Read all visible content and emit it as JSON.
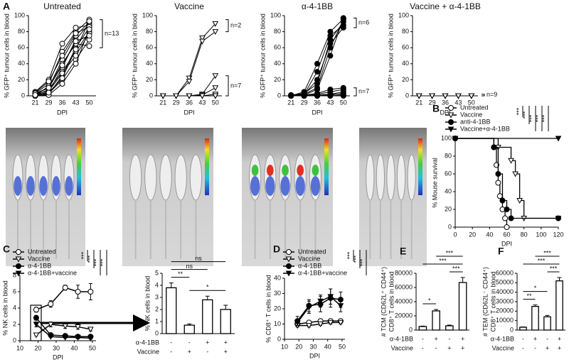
{
  "chart_data": [
    {
      "type": "line",
      "panel": "A",
      "title": "Untreated",
      "x_label": "DPI",
      "y_label": "% GFP⁺ tumour cells in blood",
      "color": "#000000",
      "marker": "circle-open",
      "categories": [
        "21",
        "29",
        "36",
        "43",
        "50"
      ],
      "ylim": [
        0,
        100
      ],
      "yticks": [
        0,
        20,
        40,
        60,
        80,
        100
      ],
      "series": [
        {
          "values": [
            0,
            2,
            25,
            60,
            85
          ]
        },
        {
          "values": [
            0,
            5,
            35,
            70,
            90
          ]
        },
        {
          "values": [
            2,
            10,
            45,
            75,
            92
          ]
        },
        {
          "values": [
            3,
            15,
            55,
            80,
            95
          ]
        },
        {
          "values": [
            5,
            20,
            65,
            85,
            88
          ]
        },
        {
          "values": [
            0,
            8,
            30,
            55,
            80
          ]
        },
        {
          "values": [
            1,
            3,
            20,
            45,
            70
          ]
        },
        {
          "values": [
            0,
            12,
            40,
            65,
            62
          ]
        },
        {
          "values": [
            4,
            18,
            50,
            78,
            86
          ]
        },
        {
          "values": [
            2,
            6,
            28,
            50,
            78
          ]
        },
        {
          "values": [
            0,
            1,
            15,
            40,
            83
          ]
        },
        {
          "values": [
            3,
            10,
            38,
            68,
            75
          ]
        },
        {
          "values": [
            1,
            4,
            22,
            58,
            93
          ]
        }
      ],
      "annotations": [
        "n=13"
      ]
    },
    {
      "type": "line",
      "title": "Vaccine",
      "x_label": "DPI",
      "y_label": "% GFP⁺ tumour cells in blood",
      "color": "#000000",
      "marker": "triangle-open",
      "categories": [
        "21",
        "29",
        "36",
        "43",
        "50"
      ],
      "ylim": [
        0,
        100
      ],
      "yticks": [
        0,
        20,
        40,
        60,
        80,
        100
      ],
      "series": [
        {
          "values": [
            0,
            0,
            22,
            72,
            90
          ]
        },
        {
          "values": [
            0,
            0,
            18,
            68,
            80
          ]
        },
        {
          "values": [
            0,
            0,
            0,
            2,
            25
          ]
        },
        {
          "values": [
            0,
            0,
            0,
            1,
            10
          ]
        },
        {
          "values": [
            0,
            0,
            0,
            0,
            2
          ]
        },
        {
          "values": [
            0,
            0,
            0,
            0,
            0
          ]
        },
        {
          "values": [
            0,
            0,
            0,
            0,
            0
          ]
        },
        {
          "values": [
            0,
            0,
            0,
            0,
            0
          ]
        },
        {
          "values": [
            0,
            0,
            0,
            0,
            0
          ]
        }
      ],
      "annotations": [
        "n=2",
        "n=7"
      ]
    },
    {
      "type": "line",
      "title": "α-4-1BB",
      "x_label": "DPI",
      "y_label": "% GFP⁺ tumour cells in blood",
      "color": "#000000",
      "marker": "circle",
      "categories": [
        "21",
        "29",
        "36",
        "43",
        "50"
      ],
      "ylim": [
        0,
        100
      ],
      "yticks": [
        0,
        20,
        40,
        60,
        80,
        100
      ],
      "series": [
        {
          "values": [
            0,
            2,
            10,
            60,
            95
          ]
        },
        {
          "values": [
            0,
            1,
            8,
            50,
            97
          ]
        },
        {
          "values": [
            1,
            3,
            15,
            70,
            92
          ]
        },
        {
          "values": [
            0,
            2,
            30,
            75,
            88
          ]
        },
        {
          "values": [
            0,
            5,
            40,
            80,
            96
          ]
        },
        {
          "values": [
            1,
            2,
            20,
            65,
            85
          ]
        },
        {
          "values": [
            0,
            0,
            2,
            5,
            8
          ]
        },
        {
          "values": [
            0,
            1,
            3,
            8,
            10
          ]
        },
        {
          "values": [
            0,
            0,
            1,
            2,
            5
          ]
        },
        {
          "values": [
            0,
            0,
            0,
            1,
            3
          ]
        },
        {
          "values": [
            0,
            1,
            1,
            2,
            2
          ]
        },
        {
          "values": [
            0,
            0,
            0,
            0,
            1
          ]
        },
        {
          "values": [
            0,
            0,
            0,
            0,
            0
          ]
        }
      ],
      "annotations": [
        "n=6",
        "n=7"
      ]
    },
    {
      "type": "line",
      "title": "Vaccine + α-4-1BB",
      "x_label": "DPI",
      "y_label": "% GFP⁺ tumour cells in blood",
      "color": "#000000",
      "marker": "triangle-open",
      "categories": [
        "21",
        "29",
        "36",
        "43",
        "50"
      ],
      "ylim": [
        0,
        100
      ],
      "yticks": [
        0,
        20,
        40,
        60,
        80,
        100
      ],
      "series": [
        {
          "values": [
            0,
            0,
            0,
            0,
            0
          ]
        },
        {
          "values": [
            0,
            0,
            0,
            0,
            0
          ]
        },
        {
          "values": [
            0,
            0,
            0,
            0,
            0
          ]
        },
        {
          "values": [
            0,
            0,
            0,
            0,
            0
          ]
        },
        {
          "values": [
            0,
            0,
            0,
            0,
            0
          ]
        },
        {
          "values": [
            0,
            0,
            0,
            0,
            0
          ]
        },
        {
          "values": [
            0,
            0,
            0,
            0,
            0
          ]
        },
        {
          "values": [
            0,
            0,
            0,
            0,
            0
          ]
        },
        {
          "values": [
            0,
            0,
            0,
            0,
            0
          ]
        }
      ],
      "annotations": [
        "n=9"
      ]
    },
    {
      "type": "step",
      "panel": "B",
      "x_label": "DPI",
      "y_label": "% Mouse survival",
      "color": "#000000",
      "xlim": [
        0,
        120
      ],
      "xticks": [
        0,
        20,
        40,
        60,
        80,
        100,
        120
      ],
      "ylim": [
        0,
        100
      ],
      "yticks": [
        0,
        20,
        40,
        60,
        80,
        100
      ],
      "series": [
        {
          "name": "Untreated",
          "marker": "circle-open",
          "x": [
            0,
            45,
            48,
            50,
            52,
            55,
            58,
            60
          ],
          "values": [
            100,
            90,
            70,
            50,
            35,
            20,
            10,
            0
          ]
        },
        {
          "name": "Vaccine",
          "marker": "triangle-open",
          "x": [
            0,
            50,
            65,
            70,
            75,
            80,
            120
          ],
          "values": [
            100,
            90,
            75,
            60,
            30,
            10,
            10
          ]
        },
        {
          "name": "anti-4-1BB",
          "marker": "circle",
          "x": [
            0,
            45,
            50,
            55,
            60,
            65,
            120
          ],
          "values": [
            100,
            90,
            60,
            30,
            20,
            10,
            10
          ]
        },
        {
          "name": "Vaccine+α-4-1BB",
          "marker": "triangle",
          "x": [
            0,
            120
          ],
          "values": [
            100,
            100
          ]
        }
      ],
      "annotations": [
        "***",
        "***",
        "***",
        "***",
        "***"
      ]
    },
    {
      "type": "line",
      "panel": "C",
      "x_label": "DPI",
      "y_label": "% NK cells in blood",
      "color": "#000000",
      "x": [
        19,
        27,
        35,
        42,
        49
      ],
      "xlim": [
        10,
        52
      ],
      "xticks": [
        10,
        20,
        30,
        40,
        50
      ],
      "ylim": [
        0,
        8
      ],
      "yticks": [
        0,
        2,
        4,
        6,
        8
      ],
      "series": [
        {
          "name": "Untreated",
          "marker": "circle-open",
          "values": [
            3.8,
            4.5,
            6.5,
            6.0,
            6.0
          ],
          "errors": [
            0.3,
            0.4,
            0.3,
            0.8,
            1.0
          ]
        },
        {
          "name": "Vaccine",
          "marker": "triangle-open",
          "values": [
            0.7,
            2.0,
            1.8,
            1.7,
            1.4
          ],
          "errors": [
            0.1,
            0.3,
            0.3,
            0.3,
            0.2
          ]
        },
        {
          "name": "α-4-1BB",
          "marker": "circle",
          "values": [
            2.8,
            0.7,
            0.6,
            0.5,
            0.5
          ],
          "errors": [
            0.3,
            0.1,
            0.1,
            0.1,
            0.1
          ]
        },
        {
          "name": "α-4-1BB+vaccine",
          "marker": "triangle",
          "values": [
            2.0,
            0.5,
            0.4,
            0.4,
            0.3
          ],
          "errors": [
            0.3,
            0.1,
            0.1,
            0.1,
            0.1
          ]
        }
      ],
      "annotations": [
        "***",
        "***",
        "***",
        "***"
      ]
    },
    {
      "type": "bar",
      "y_label": "% NK cells in blood",
      "color": "#000000",
      "values": [
        3.8,
        0.7,
        2.8,
        2.0
      ],
      "errors": [
        0.4,
        0.1,
        0.3,
        0.35
      ],
      "ylim": [
        0,
        5
      ],
      "yticks": [
        0,
        1,
        2,
        3,
        4,
        5
      ],
      "rows": [
        {
          "label": "α-4-1BB",
          "signs": [
            "-",
            "-",
            "+",
            "+"
          ]
        },
        {
          "label": "Vaccine",
          "signs": [
            "-",
            "+",
            "-",
            "+"
          ]
        }
      ],
      "annotations": [
        "ns",
        "ns",
        "**",
        "*"
      ]
    },
    {
      "type": "line",
      "panel": "D",
      "x_label": "DPI",
      "y_label": "% CD8⁺ T cells in blood",
      "color": "#000000",
      "x": [
        19,
        27,
        35,
        42,
        49
      ],
      "xlim": [
        10,
        52
      ],
      "xticks": [
        10,
        20,
        30,
        40,
        50
      ],
      "ylim": [
        0,
        40
      ],
      "yticks": [
        0,
        10,
        20,
        30,
        40
      ],
      "series": [
        {
          "name": "Untreated",
          "marker": "circle-open",
          "values": [
            10,
            11,
            12,
            12,
            12
          ],
          "errors": [
            1,
            1,
            1,
            1,
            1
          ]
        },
        {
          "name": "Vaccine",
          "marker": "triangle-open",
          "values": [
            9,
            9,
            10,
            11,
            11
          ],
          "errors": [
            1,
            1,
            1,
            1,
            1
          ]
        },
        {
          "name": "α-4-1BB",
          "marker": "circle",
          "values": [
            12,
            22,
            23,
            27,
            26
          ],
          "errors": [
            3,
            4,
            5,
            6,
            5
          ]
        },
        {
          "name": "α-4-1BB+vaccine",
          "marker": "triangle",
          "values": [
            11,
            21,
            25,
            28,
            22
          ],
          "errors": [
            2,
            4,
            4,
            5,
            4
          ]
        }
      ],
      "annotations": [
        "***",
        "***",
        "***"
      ]
    },
    {
      "type": "bar",
      "panel": "E",
      "y_label": [
        "# TCM (CD62L⁺ CD44⁺)",
        "CD8⁺ T cells in blood"
      ],
      "color": "#000000",
      "values": [
        5000,
        27000,
        6000,
        67000
      ],
      "errors": [
        600,
        2000,
        1000,
        7000
      ],
      "ylim": [
        0,
        80000
      ],
      "yticks": [
        0,
        20000,
        40000,
        60000,
        80000
      ],
      "rows": [
        {
          "label": "α-4-1BB",
          "signs": [
            "-",
            "+",
            "-",
            "+"
          ]
        },
        {
          "label": "Vaccine",
          "signs": [
            "-",
            "-",
            "+",
            "+"
          ]
        }
      ],
      "annotations": [
        "***",
        "***",
        "***",
        "*"
      ]
    },
    {
      "type": "bar",
      "panel": "F",
      "y_label": [
        "# TEM (CD62L⁻ CD44⁺)",
        "CD8⁺ T cells in blood"
      ],
      "color": "#000000",
      "values": [
        3000,
        25000,
        14000,
        52000
      ],
      "errors": [
        300,
        1500,
        1500,
        3500
      ],
      "ylim": [
        0,
        60000
      ],
      "yticks": [
        0,
        10000,
        20000,
        30000,
        40000,
        50000,
        60000
      ],
      "rows": [
        {
          "label": "α-4-1BB",
          "signs": [
            "-",
            "+",
            "-",
            "+"
          ]
        },
        {
          "label": "Vaccine",
          "signs": [
            "-",
            "-",
            "+",
            "+"
          ]
        }
      ],
      "annotations": [
        "***",
        "***",
        "***",
        "*",
        "**"
      ]
    }
  ]
}
